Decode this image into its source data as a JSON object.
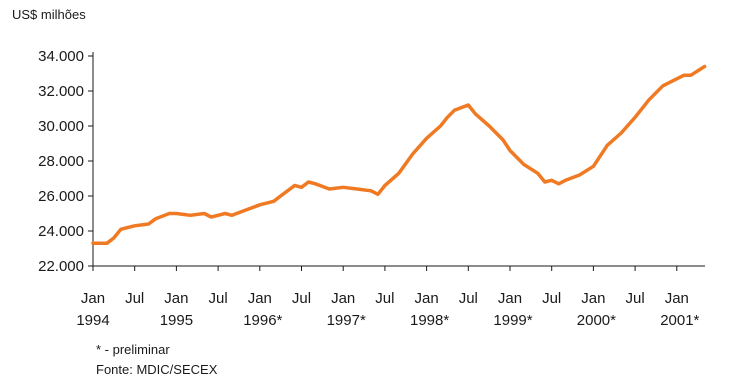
{
  "chart_data": {
    "type": "line",
    "title": "",
    "ylabel": "US$ milhões",
    "xlabel": "",
    "ylim": [
      22000,
      34000
    ],
    "yticks": [
      {
        "value": 22000,
        "label": "22.000"
      },
      {
        "value": 24000,
        "label": "24.000"
      },
      {
        "value": 26000,
        "label": "26.000"
      },
      {
        "value": 28000,
        "label": "28.000"
      },
      {
        "value": 30000,
        "label": "30.000"
      },
      {
        "value": 32000,
        "label": "32.000"
      },
      {
        "value": 34000,
        "label": "34.000"
      }
    ],
    "xticks": [
      {
        "date": "1994-01",
        "month": "Jan",
        "year": "1994"
      },
      {
        "date": "1994-07",
        "month": "Jul",
        "year": ""
      },
      {
        "date": "1995-01",
        "month": "Jan",
        "year": "1995"
      },
      {
        "date": "1995-07",
        "month": "Jul",
        "year": ""
      },
      {
        "date": "1996-01",
        "month": "Jan",
        "year": "1996*"
      },
      {
        "date": "1996-07",
        "month": "Jul",
        "year": ""
      },
      {
        "date": "1997-01",
        "month": "Jan",
        "year": "1997*"
      },
      {
        "date": "1997-07",
        "month": "Jul",
        "year": ""
      },
      {
        "date": "1998-01",
        "month": "Jan",
        "year": "1998*"
      },
      {
        "date": "1998-07",
        "month": "Jul",
        "year": ""
      },
      {
        "date": "1999-01",
        "month": "Jan",
        "year": "1999*"
      },
      {
        "date": "1999-07",
        "month": "Jul",
        "year": ""
      },
      {
        "date": "2000-01",
        "month": "Jan",
        "year": "2000*"
      },
      {
        "date": "2000-07",
        "month": "Jul",
        "year": ""
      },
      {
        "date": "2001-01",
        "month": "Jan",
        "year": "2001*"
      }
    ],
    "grid": false,
    "legend": "none",
    "series": [
      {
        "color": "#f07a24",
        "points": [
          [
            "1994-01",
            23300
          ],
          [
            "1994-03",
            23300
          ],
          [
            "1994-04",
            23600
          ],
          [
            "1994-05",
            24100
          ],
          [
            "1994-07",
            24300
          ],
          [
            "1994-09",
            24400
          ],
          [
            "1994-10",
            24700
          ],
          [
            "1994-12",
            25000
          ],
          [
            "1995-01",
            25000
          ],
          [
            "1995-03",
            24900
          ],
          [
            "1995-05",
            25000
          ],
          [
            "1995-06",
            24800
          ],
          [
            "1995-07",
            24900
          ],
          [
            "1995-08",
            25000
          ],
          [
            "1995-09",
            24900
          ],
          [
            "1995-11",
            25200
          ],
          [
            "1996-01",
            25500
          ],
          [
            "1996-03",
            25700
          ],
          [
            "1996-04",
            26000
          ],
          [
            "1996-05",
            26300
          ],
          [
            "1996-06",
            26600
          ],
          [
            "1996-07",
            26500
          ],
          [
            "1996-08",
            26800
          ],
          [
            "1996-09",
            26700
          ],
          [
            "1996-11",
            26400
          ],
          [
            "1997-01",
            26500
          ],
          [
            "1997-03",
            26400
          ],
          [
            "1997-05",
            26300
          ],
          [
            "1997-06",
            26100
          ],
          [
            "1997-07",
            26600
          ],
          [
            "1997-09",
            27300
          ],
          [
            "1997-11",
            28400
          ],
          [
            "1998-01",
            29300
          ],
          [
            "1998-03",
            30000
          ],
          [
            "1998-04",
            30500
          ],
          [
            "1998-05",
            30900
          ],
          [
            "1998-07",
            31200
          ],
          [
            "1998-08",
            30700
          ],
          [
            "1998-10",
            30000
          ],
          [
            "1998-12",
            29200
          ],
          [
            "1999-01",
            28600
          ],
          [
            "1999-03",
            27800
          ],
          [
            "1999-05",
            27300
          ],
          [
            "1999-06",
            26800
          ],
          [
            "1999-07",
            26900
          ],
          [
            "1999-08",
            26700
          ],
          [
            "1999-09",
            26900
          ],
          [
            "1999-11",
            27200
          ],
          [
            "2000-01",
            27700
          ],
          [
            "2000-03",
            28900
          ],
          [
            "2000-05",
            29600
          ],
          [
            "2000-07",
            30500
          ],
          [
            "2000-09",
            31500
          ],
          [
            "2000-11",
            32300
          ],
          [
            "2001-01",
            32700
          ],
          [
            "2001-02",
            32900
          ],
          [
            "2001-03",
            32900
          ],
          [
            "2001-05",
            33400
          ]
        ]
      }
    ]
  },
  "notes": {
    "preliminar": "* - preliminar",
    "fonte": "Fonte: MDIC/SECEX"
  }
}
